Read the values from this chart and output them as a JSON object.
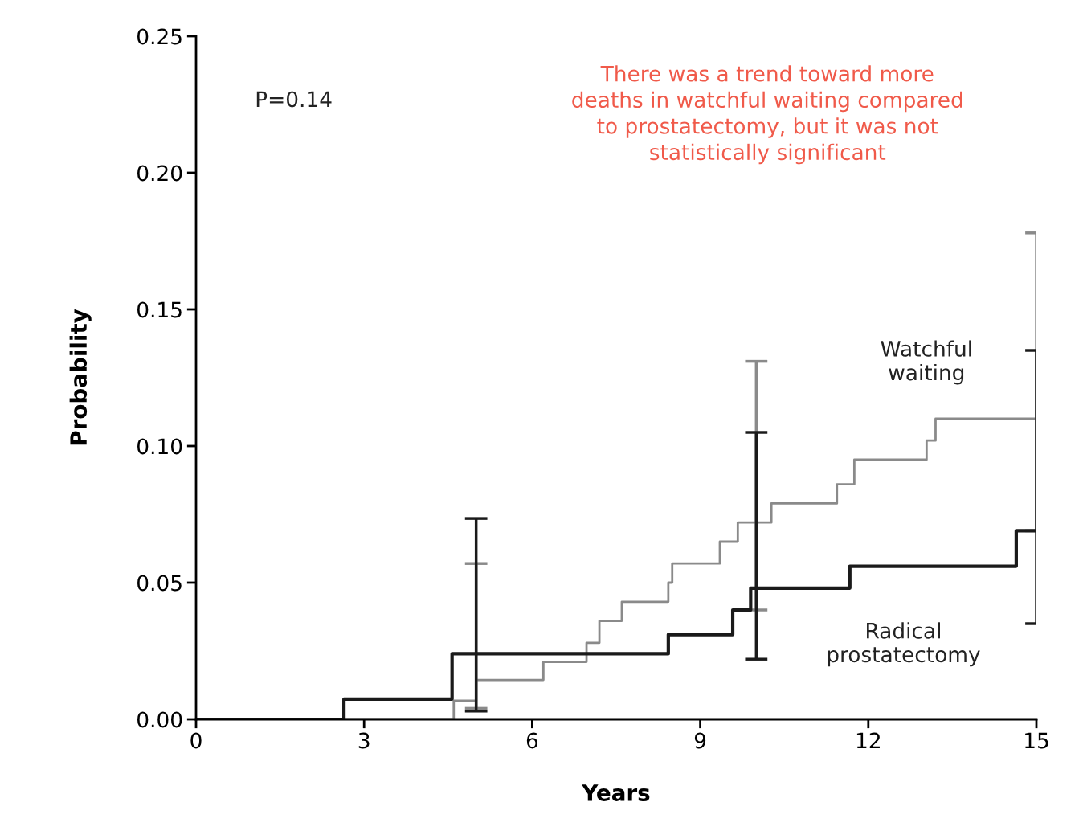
{
  "chart_data": {
    "type": "step",
    "xlabel": "Years",
    "ylabel": "Probability",
    "xlim": [
      0,
      15
    ],
    "xticks": [
      0,
      3,
      6,
      9,
      12,
      15
    ],
    "ylim": [
      0,
      0.25
    ],
    "yticks": [
      {
        "value": 0,
        "label": "0.00"
      },
      {
        "value": 0.05,
        "label": "0.05"
      },
      {
        "value": 0.1,
        "label": "0.10"
      },
      {
        "value": 0.15,
        "label": "0.15"
      },
      {
        "value": 0.2,
        "label": "0.20"
      },
      {
        "value": 0.25,
        "label": "0.25"
      }
    ],
    "grid": false,
    "legend": false,
    "series": [
      {
        "name": "Watchful waiting",
        "color": "#8a8a8a",
        "x": [
          0,
          4.6,
          5.0,
          6.2,
          6.97,
          7.2,
          7.6,
          8.43,
          8.5,
          9.35,
          9.67,
          10,
          10.27,
          11.44,
          11.75,
          13.04,
          13.2,
          15
        ],
        "values": [
          0,
          0.0068,
          0.0144,
          0.021,
          0.028,
          0.036,
          0.043,
          0.05,
          0.057,
          0.065,
          0.072,
          0.072,
          0.079,
          0.086,
          0.095,
          0.102,
          0.11,
          0.11
        ],
        "errors": [
          null,
          null,
          [
            0.004,
            0.057
          ],
          null,
          null,
          null,
          null,
          null,
          null,
          null,
          null,
          [
            0.04,
            0.131
          ],
          null,
          null,
          null,
          null,
          null,
          [
            0.069,
            0.178
          ]
        ]
      },
      {
        "name": "Radical prostatectomy",
        "color": "#1a1a1a",
        "x": [
          0,
          2.64,
          4.57,
          5,
          8.43,
          9.58,
          9.9,
          10,
          11.67,
          14.64,
          15
        ],
        "values": [
          0,
          0.0074,
          0.024,
          0.024,
          0.031,
          0.04,
          0.048,
          0.048,
          0.056,
          0.069,
          0.069
        ],
        "errors": [
          null,
          null,
          null,
          [
            0.003,
            0.0735
          ],
          null,
          null,
          null,
          [
            0.022,
            0.105
          ],
          null,
          null,
          [
            0.035,
            0.135
          ]
        ]
      }
    ],
    "annotations": [
      "P=0.14",
      "There was a trend toward more\ndeaths in watchful waiting compared\nto prostatectomy, but it was not\nstatistically significant"
    ]
  }
}
